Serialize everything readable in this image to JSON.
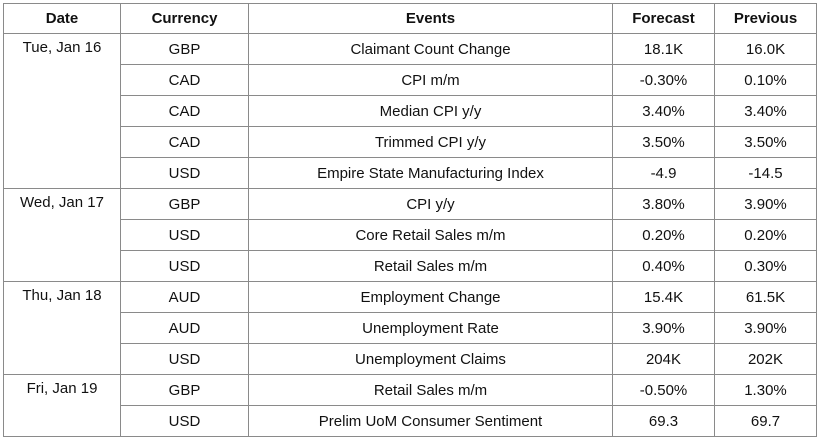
{
  "table": {
    "headers": [
      "Date",
      "Currency",
      "Events",
      "Forecast",
      "Previous"
    ],
    "rows": [
      {
        "date": "Tue, Jan 16",
        "currency": "GBP",
        "event": "Claimant Count Change",
        "forecast": "18.1K",
        "previous": "16.0K"
      },
      {
        "date": "",
        "currency": "CAD",
        "event": "CPI m/m",
        "forecast": "-0.30%",
        "previous": "0.10%"
      },
      {
        "date": "",
        "currency": "CAD",
        "event": "Median CPI y/y",
        "forecast": "3.40%",
        "previous": "3.40%"
      },
      {
        "date": "",
        "currency": "CAD",
        "event": "Trimmed CPI y/y",
        "forecast": "3.50%",
        "previous": "3.50%"
      },
      {
        "date": "",
        "currency": "USD",
        "event": "Empire State Manufacturing Index",
        "forecast": "-4.9",
        "previous": "-14.5"
      },
      {
        "date": "Wed, Jan 17",
        "currency": "GBP",
        "event": "CPI y/y",
        "forecast": "3.80%",
        "previous": "3.90%"
      },
      {
        "date": "",
        "currency": "USD",
        "event": "Core Retail Sales m/m",
        "forecast": "0.20%",
        "previous": "0.20%"
      },
      {
        "date": "",
        "currency": "USD",
        "event": "Retail Sales m/m",
        "forecast": "0.40%",
        "previous": "0.30%"
      },
      {
        "date": "Thu, Jan 18",
        "currency": "AUD",
        "event": "Employment Change",
        "forecast": "15.4K",
        "previous": "61.5K"
      },
      {
        "date": "",
        "currency": "AUD",
        "event": "Unemployment Rate",
        "forecast": "3.90%",
        "previous": "3.90%"
      },
      {
        "date": "",
        "currency": "USD",
        "event": "Unemployment Claims",
        "forecast": "204K",
        "previous": "202K"
      },
      {
        "date": "Fri, Jan 19",
        "currency": "GBP",
        "event": "Retail Sales m/m",
        "forecast": "-0.50%",
        "previous": "1.30%"
      },
      {
        "date": "",
        "currency": "USD",
        "event": "Prelim UoM Consumer Sentiment",
        "forecast": "69.3",
        "previous": "69.7"
      }
    ]
  }
}
